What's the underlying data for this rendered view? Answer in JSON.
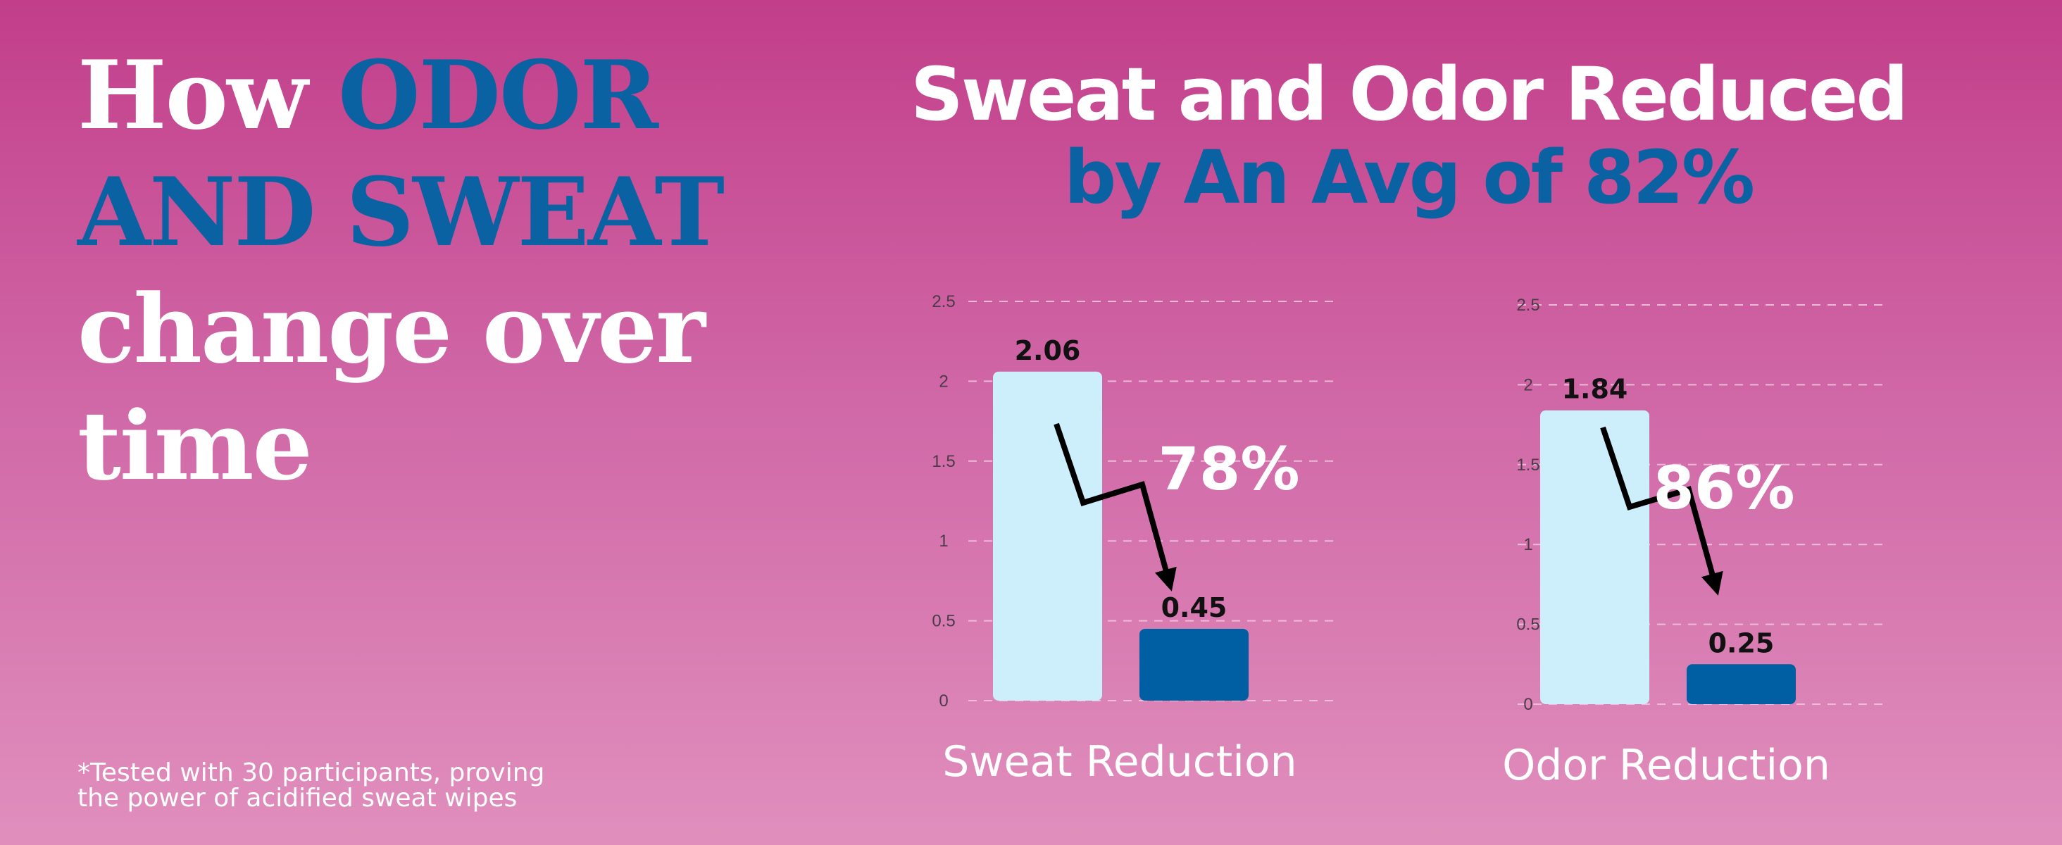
{
  "headline": {
    "word1": "How",
    "accent_line1": "ODOR",
    "accent_line2": "AND SWEAT",
    "rest_line3": "change over",
    "rest_line4": "time"
  },
  "title": {
    "line1": "Sweat and Odor Reduced",
    "line2": "by An Avg of 82%"
  },
  "footnote": {
    "line1": "*Tested with 30 participants, proving",
    "line2": "the power of acidified sweat wipes"
  },
  "colors": {
    "background_top": "#c23e8a",
    "background_bottom": "#e08fbd",
    "accent_blue": "#0b62a3",
    "bar_before": "#cdeffb",
    "bar_after": "#005fa3",
    "text_white": "#ffffff"
  },
  "chart_data": [
    {
      "type": "bar",
      "xlabel": "Sweat Reduction",
      "values": [
        2.06,
        0.45
      ],
      "data_labels": [
        "2.06",
        "0.45"
      ],
      "bar_colors": [
        "#cdeffb",
        "#005fa3"
      ],
      "ylim": [
        0,
        2.5
      ],
      "yticks": [
        0,
        0.5,
        1,
        1.5,
        2,
        2.5
      ],
      "ytick_labels": [
        "0",
        "0.5",
        "1",
        "1.5",
        "2",
        "2.5"
      ],
      "grid": true,
      "grid_style": "dashed",
      "annotation": "78%",
      "annotation_arrow": "downward zigzag arrow from first bar to second bar"
    },
    {
      "type": "bar",
      "xlabel": "Odor Reduction",
      "values": [
        1.84,
        0.25
      ],
      "data_labels": [
        "1.84",
        "0.25"
      ],
      "bar_colors": [
        "#cdeffb",
        "#005fa3"
      ],
      "ylim": [
        0,
        2.5
      ],
      "yticks": [
        0,
        0.5,
        1,
        1.5,
        2,
        2.5
      ],
      "ytick_labels": [
        "0",
        "0.5",
        "1",
        "1.5",
        "2",
        "2.5"
      ],
      "grid": true,
      "grid_style": "dashed",
      "annotation": "86%",
      "annotation_arrow": "downward zigzag arrow from first bar to second bar"
    }
  ]
}
